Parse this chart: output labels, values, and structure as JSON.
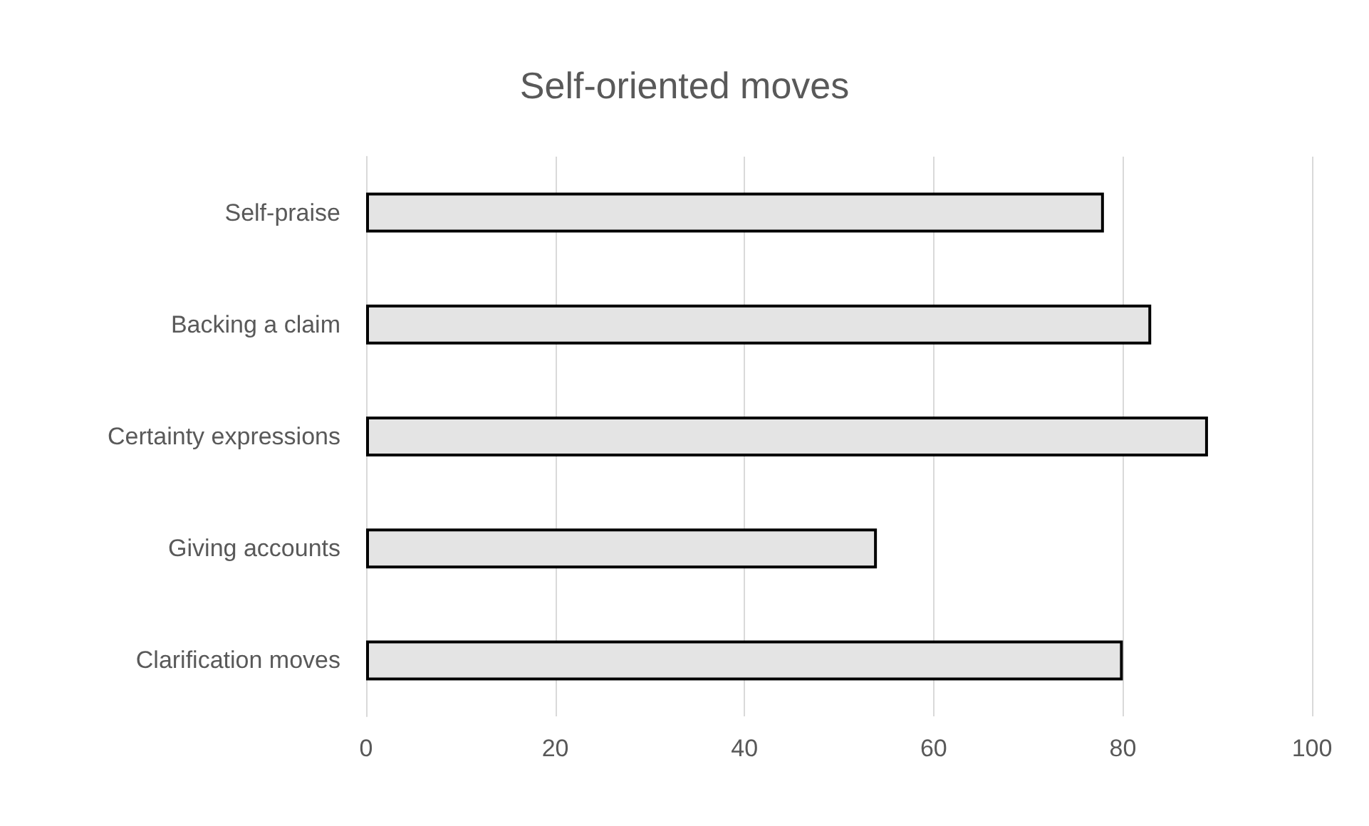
{
  "chart_data": {
    "type": "bar",
    "orientation": "horizontal",
    "title": "Self-oriented moves",
    "categories": [
      "Self-praise",
      "Backing a claim",
      "Certainty expressions",
      "Giving accounts",
      "Clarification moves"
    ],
    "values": [
      78,
      83,
      89,
      54,
      80
    ],
    "color": "#e4e4e4",
    "xlim": [
      0,
      100
    ],
    "xticks": [
      0,
      20,
      40,
      60,
      80,
      100
    ],
    "grid": "x"
  }
}
